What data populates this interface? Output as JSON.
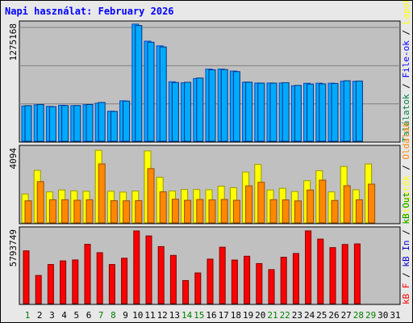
{
  "title": "Napi használat: February 2026",
  "colors": {
    "title": "#0000ff",
    "panel_bg": "#c0c0c0",
    "pages": "#00aaff",
    "pages_top": "#0044cc",
    "files": "#ffff00",
    "files_edge": "#999900",
    "hits": "#00aaff",
    "visits": "#ff8800",
    "kb_f": "#ff0000",
    "kb_in": "#0000cc",
    "kb_out": "#009900",
    "sites": "#ff8800",
    "weekend_day": "#008000",
    "weekday_day": "#000000"
  },
  "chart_data": {
    "type": "bar",
    "categories": [
      "1",
      "2",
      "3",
      "4",
      "5",
      "6",
      "7",
      "8",
      "9",
      "10",
      "11",
      "12",
      "13",
      "14",
      "15",
      "16",
      "17",
      "18",
      "19",
      "20",
      "21",
      "22",
      "23",
      "24",
      "25",
      "26",
      "27",
      "28",
      "29",
      "30",
      "31"
    ],
    "weekend_days": [
      "1",
      "7",
      "8",
      "14",
      "15",
      "21",
      "22",
      "28",
      "29"
    ],
    "panels": [
      {
        "name": "hits-pages",
        "ymax_label": "1275168",
        "ymax": 1275168,
        "legend": [
          {
            "text": "Találatok",
            "color": "#008040"
          },
          {
            "text": " / ",
            "color": "#000000"
          },
          {
            "text": "File-ok",
            "color": "#0000ff"
          },
          {
            "text": " / ",
            "color": "#000000"
          },
          {
            "text": "Lapok",
            "color": "#ffff00"
          }
        ],
        "series": [
          {
            "name": "Találatok",
            "values": [
              388000,
              400000,
              383000,
              395000,
              391000,
              401000,
              418000,
              330000,
              444000,
              1285000,
              1098000,
              1047000,
              653000,
              642000,
              688000,
              792000,
              792000,
              770000,
              649000,
              639000,
              639000,
              640000,
              609000,
              636000,
              637000,
              637000,
              659000,
              658000,
              null,
              null,
              null
            ]
          },
          {
            "name": "File-ok",
            "values": [
              391000,
              403000,
              380000,
              392000,
              392000,
              403000,
              426000,
              328000,
              441000,
              1270000,
              1086000,
              1035000,
              645000,
              647000,
              694000,
              784000,
              787000,
              764000,
              648000,
              638000,
              638000,
              643000,
              613000,
              628000,
              630000,
              634000,
              664000,
              661000,
              null,
              null,
              null
            ]
          }
        ]
      },
      {
        "name": "files-visits",
        "ymax_label": "4094",
        "ymax": 4094,
        "legend": [
          {
            "text": "Látogatók",
            "color": "#ffff00"
          },
          {
            "text": " / ",
            "color": "#000000"
          },
          {
            "text": "Oldalak",
            "color": "#ff8800"
          }
        ],
        "series": [
          {
            "name": "Látogatók",
            "values": [
              1607,
              2923,
              1725,
              1831,
              1784,
              1760,
              4043,
              1761,
              1713,
              1773,
              4009,
              2543,
              1773,
              1856,
              1857,
              1845,
              2045,
              1962,
              2830,
              3255,
              1831,
              1926,
              1745,
              2350,
              2906,
              1725,
              3141,
              1845,
              3282,
              null,
              null
            ]
          },
          {
            "name": "Oldalak",
            "values": [
              1229,
              2300,
              1288,
              1288,
              1261,
              1288,
              3285,
              1234,
              1229,
              1240,
              3021,
              1729,
              1319,
              1257,
              1303,
              1280,
              1305,
              1258,
              2063,
              2263,
              1293,
              1280,
              1224,
              1830,
              2383,
              1248,
              2070,
              1288,
              2158,
              null,
              null
            ]
          }
        ]
      },
      {
        "name": "kbytes",
        "ymax_label": "5793749",
        "ymax": 5793749,
        "legend": [
          {
            "text": "kB F",
            "color": "#ff0000"
          },
          {
            "text": " / ",
            "color": "#000000"
          },
          {
            "text": "kB In",
            "color": "#0000cc"
          },
          {
            "text": " / ",
            "color": "#000000"
          },
          {
            "text": "kB Out",
            "color": "#009900"
          }
        ],
        "series": [
          {
            "name": "kB F",
            "values": [
              4207000,
              2245000,
              3118000,
              3408000,
              3481000,
              4728000,
              4061000,
              3117000,
              3620000,
              5794000,
              5397000,
              4546000,
              3843000,
              1840000,
              2446000,
              3546000,
              4497000,
              3473000,
              3779000,
              3193000,
              2710000,
              3699000,
              3997000,
              5799000,
              5144000,
              4465000,
              4715000,
              4763000,
              null,
              null,
              null
            ]
          }
        ]
      }
    ]
  }
}
